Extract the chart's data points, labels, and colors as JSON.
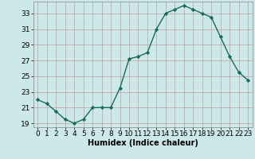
{
  "x": [
    0,
    1,
    2,
    3,
    4,
    5,
    6,
    7,
    8,
    9,
    10,
    11,
    12,
    13,
    14,
    15,
    16,
    17,
    18,
    19,
    20,
    21,
    22,
    23
  ],
  "y": [
    22.0,
    21.5,
    20.5,
    19.5,
    19.0,
    19.5,
    21.0,
    21.0,
    21.0,
    23.5,
    27.2,
    27.5,
    28.0,
    31.0,
    33.0,
    33.5,
    34.0,
    33.5,
    33.0,
    32.5,
    30.0,
    27.5,
    25.5,
    24.5
  ],
  "xlabel": "Humidex (Indice chaleur)",
  "xlim": [
    -0.5,
    23.5
  ],
  "ylim": [
    18.5,
    34.5
  ],
  "yticks": [
    19,
    21,
    23,
    25,
    27,
    29,
    31,
    33
  ],
  "xtick_labels": [
    "0",
    "1",
    "2",
    "3",
    "4",
    "5",
    "6",
    "7",
    "8",
    "9",
    "10",
    "11",
    "12",
    "13",
    "14",
    "15",
    "16",
    "17",
    "18",
    "19",
    "20",
    "21",
    "22",
    "23"
  ],
  "line_color": "#1a6b5a",
  "marker_color": "#1a6b5a",
  "bg_color": "#cce8e8",
  "grid_color": "#c0a0a0",
  "label_fontsize": 7,
  "tick_fontsize": 6.5
}
